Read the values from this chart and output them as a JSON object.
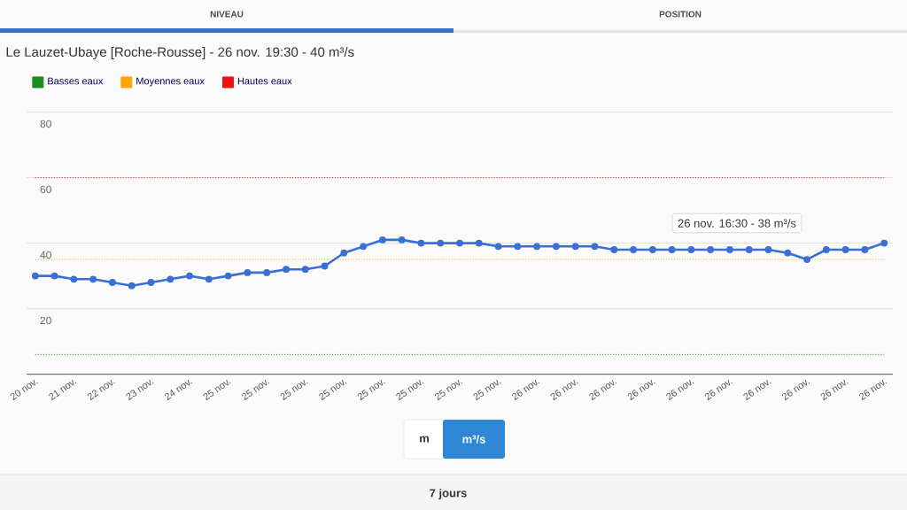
{
  "chart_data": {
    "type": "line",
    "title": "Le Lauzet-Ubaye [Roche-Rousse] - 26 nov. 19:30 - 40 m³/s",
    "categories": [
      "20 nov.",
      null,
      "21 nov.",
      null,
      "22 nov.",
      null,
      "23 nov.",
      null,
      "24 nov.",
      null,
      "25 nov.",
      null,
      "25 nov.",
      null,
      "25 nov.",
      null,
      "25 nov.",
      null,
      "25 nov.",
      null,
      "25 nov.",
      null,
      "25 nov.",
      null,
      "25 nov.",
      null,
      "26 nov.",
      null,
      "26 nov.",
      null,
      "26 nov.",
      null,
      "26 nov.",
      null,
      "26 nov.",
      null,
      "26 nov.",
      null,
      "26 nov.",
      null,
      "26 nov.",
      null,
      "26 nov.",
      null,
      "26 nov."
    ],
    "series": [
      {
        "color": "#3b6fd4",
        "values": [
          30,
          30,
          29,
          29,
          28,
          27,
          28,
          29,
          30,
          29,
          30,
          31,
          31,
          32,
          32,
          33,
          37,
          39,
          41,
          41,
          40,
          40,
          40,
          40,
          39,
          39,
          39,
          39,
          39,
          39,
          38,
          38,
          38,
          38,
          38,
          38,
          38,
          38,
          38,
          37,
          35,
          38,
          38,
          38,
          40
        ]
      }
    ],
    "ylim": [
      0,
      80
    ],
    "yticks": [
      20,
      40,
      60,
      80
    ],
    "grid": "y",
    "marker": "circle",
    "line_style": "solid",
    "legend": "top left",
    "ref_lines": [
      {
        "axis": "y",
        "value": 6,
        "label": "Basses eaux",
        "color": "#1e8c1e",
        "line_style": "dotted"
      },
      {
        "axis": "y",
        "value": 35,
        "label": "Moyennes eaux",
        "color": "#ffa500",
        "line_style": "dotted"
      },
      {
        "axis": "y",
        "value": 60,
        "label": "Hautes eaux",
        "color": "#ee1111",
        "line_style": "dotted"
      }
    ],
    "annotations": [
      "26 nov. 16:30 - 38 m³/s",
      "NIVEAU",
      "POSITION",
      "m",
      "m³/s",
      "7 jours"
    ]
  }
}
